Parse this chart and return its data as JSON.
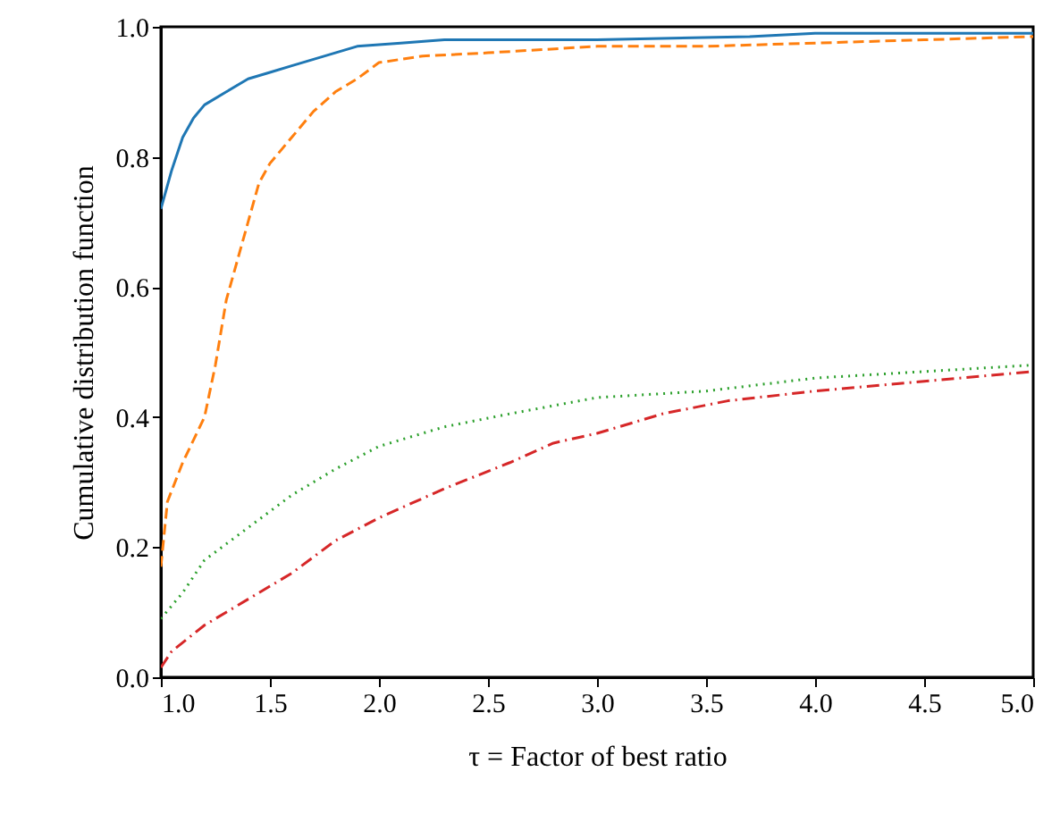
{
  "chart_data": {
    "type": "line",
    "xlabel": "τ = Factor of best ratio",
    "ylabel": "Cumulative distribution function",
    "xlim": [
      1,
      5
    ],
    "ylim": [
      0,
      1
    ],
    "xticks": [
      {
        "value": 1,
        "label": "1.0"
      },
      {
        "value": 1.5,
        "label": "1.5"
      },
      {
        "value": 2,
        "label": "2.0"
      },
      {
        "value": 2.5,
        "label": "2.5"
      },
      {
        "value": 3,
        "label": "3.0"
      },
      {
        "value": 3.5,
        "label": "3.5"
      },
      {
        "value": 4,
        "label": "4.0"
      },
      {
        "value": 4.5,
        "label": "4.5"
      },
      {
        "value": 5,
        "label": "5.0"
      }
    ],
    "yticks": [
      {
        "value": 0,
        "label": "0.0"
      },
      {
        "value": 0.2,
        "label": "0.2"
      },
      {
        "value": 0.4,
        "label": "0.4"
      },
      {
        "value": 0.6,
        "label": "0.6"
      },
      {
        "value": 0.8,
        "label": "0.8"
      },
      {
        "value": 1,
        "label": "1.0"
      }
    ],
    "series": [
      {
        "color": "#1f77b4",
        "line_style": "solid",
        "x": [
          1.0,
          1.05,
          1.1,
          1.15,
          1.2,
          1.3,
          1.4,
          1.5,
          1.6,
          1.7,
          1.8,
          1.9,
          2.1,
          2.3,
          3.0,
          3.7,
          4.0,
          5.0
        ],
        "values": [
          0.72,
          0.78,
          0.83,
          0.86,
          0.88,
          0.9,
          0.92,
          0.93,
          0.94,
          0.95,
          0.96,
          0.97,
          0.975,
          0.98,
          0.98,
          0.985,
          0.99,
          0.99
        ]
      },
      {
        "color": "#ff7f0e",
        "line_style": "dashed",
        "x": [
          1.0,
          1.03,
          1.1,
          1.2,
          1.25,
          1.3,
          1.35,
          1.4,
          1.45,
          1.5,
          1.6,
          1.7,
          1.8,
          1.9,
          2.0,
          2.2,
          2.5,
          3.0,
          3.5,
          4.0,
          4.5,
          5.0
        ],
        "values": [
          0.17,
          0.27,
          0.33,
          0.4,
          0.48,
          0.58,
          0.64,
          0.7,
          0.76,
          0.79,
          0.83,
          0.87,
          0.9,
          0.92,
          0.945,
          0.955,
          0.96,
          0.97,
          0.97,
          0.975,
          0.98,
          0.985
        ]
      },
      {
        "color": "#2ca02c",
        "line_style": "dotted",
        "x": [
          1.0,
          1.1,
          1.2,
          1.4,
          1.6,
          1.8,
          2.0,
          2.3,
          2.6,
          3.0,
          3.5,
          4.0,
          4.5,
          5.0
        ],
        "values": [
          0.09,
          0.13,
          0.18,
          0.23,
          0.28,
          0.32,
          0.355,
          0.385,
          0.405,
          0.43,
          0.44,
          0.46,
          0.47,
          0.48
        ]
      },
      {
        "color": "#d62728",
        "line_style": "dashdot",
        "x": [
          1.0,
          1.05,
          1.2,
          1.4,
          1.6,
          1.8,
          2.0,
          2.3,
          2.6,
          2.8,
          3.0,
          3.3,
          3.6,
          4.0,
          4.5,
          5.0
        ],
        "values": [
          0.015,
          0.04,
          0.08,
          0.12,
          0.16,
          0.21,
          0.245,
          0.29,
          0.33,
          0.36,
          0.375,
          0.405,
          0.425,
          0.44,
          0.455,
          0.47
        ]
      }
    ]
  }
}
